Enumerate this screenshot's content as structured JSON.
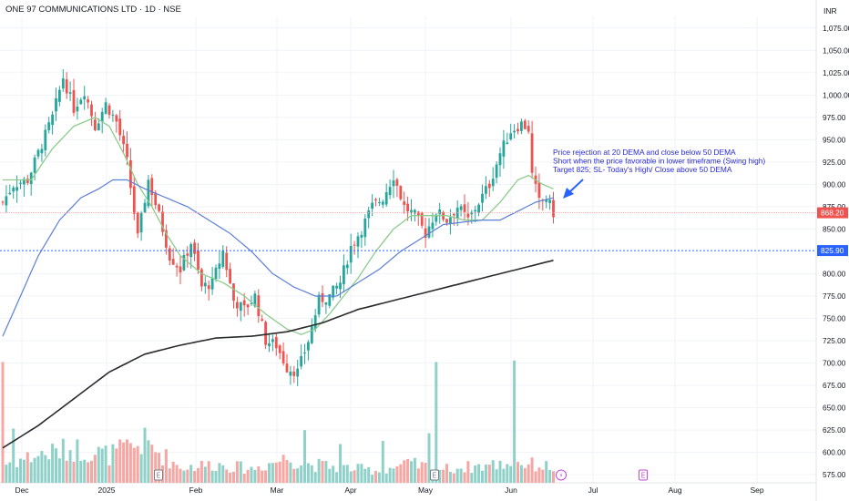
{
  "header": {
    "title": "ONE 97 COMMUNICATIONS LTD · 1D · NSE",
    "currency": "INR"
  },
  "colors": {
    "up": "#26a69a",
    "down": "#ef5350",
    "volume_up": "#8fd1c8",
    "volume_down": "#f6a7a4",
    "ema20": "#8ccb8c",
    "ema50": "#5b7fd9",
    "ema200": "#2b2b2b",
    "annotation": "#2929d6",
    "level_line": "#2962ff",
    "last_price_bg": "#ef5350"
  },
  "chart_data": {
    "type": "candlestick",
    "x_ticks": [
      "Dec",
      "2025",
      "Feb",
      "Mar",
      "Apr",
      "May",
      "Jun",
      "Jul",
      "Aug",
      "Sep"
    ],
    "y_ticks": [
      "1,075.00",
      "1,050.00",
      "1,025.00",
      "1,000.00",
      "975.00",
      "950.00",
      "925.00",
      "900.00",
      "875.00",
      "850.00",
      "800.00",
      "775.00",
      "750.00",
      "725.00",
      "700.00",
      "675.00",
      "650.00",
      "625.00",
      "600.00",
      "575.00"
    ],
    "ylim": [
      566,
      1088
    ],
    "price_markers": [
      {
        "label": "868.20",
        "value": 868.2,
        "style": "last-price"
      },
      {
        "label": "825.90",
        "value": 825.9,
        "style": "level"
      }
    ],
    "annotation": {
      "lines": [
        "Price rejection at 20 DEMA and close below 50 DEMA",
        "Short when the price favorable in lower timeframe (Swing high)",
        "Target 825; SL- Today's High/  Close above 50 DEMA"
      ]
    },
    "event_markers": [
      {
        "label": "E",
        "x_frac": 0.2
      },
      {
        "label": "E",
        "x_frac": 0.53
      },
      {
        "label": "⚡",
        "x_frac": 0.69
      },
      {
        "label": "E",
        "x_frac": 0.79
      }
    ],
    "series": [
      {
        "name": "price",
        "anchors": [
          [
            0,
            880
          ],
          [
            3,
            900
          ],
          [
            7,
            905
          ],
          [
            10,
            935
          ],
          [
            14,
            975
          ],
          [
            17,
            1020
          ],
          [
            20,
            985
          ],
          [
            23,
            1005
          ],
          [
            26,
            965
          ],
          [
            29,
            990
          ],
          [
            32,
            970
          ],
          [
            35,
            925
          ],
          [
            38,
            840
          ],
          [
            41,
            905
          ],
          [
            44,
            865
          ],
          [
            47,
            820
          ],
          [
            50,
            805
          ],
          [
            53,
            835
          ],
          [
            56,
            785
          ],
          [
            59,
            790
          ],
          [
            62,
            825
          ],
          [
            65,
            770
          ],
          [
            68,
            760
          ],
          [
            71,
            775
          ],
          [
            74,
            725
          ],
          [
            77,
            720
          ],
          [
            80,
            695
          ],
          [
            83,
            690
          ],
          [
            86,
            725
          ],
          [
            89,
            770
          ],
          [
            92,
            775
          ],
          [
            95,
            790
          ],
          [
            98,
            830
          ],
          [
            101,
            850
          ],
          [
            104,
            875
          ],
          [
            107,
            885
          ],
          [
            110,
            910
          ],
          [
            113,
            875
          ],
          [
            116,
            865
          ],
          [
            119,
            845
          ],
          [
            122,
            870
          ],
          [
            125,
            860
          ],
          [
            128,
            875
          ],
          [
            131,
            860
          ],
          [
            134,
            880
          ],
          [
            137,
            900
          ],
          [
            140,
            935
          ],
          [
            143,
            960
          ],
          [
            146,
            968
          ],
          [
            148,
            962
          ],
          [
            149,
            910
          ],
          [
            151,
            880
          ],
          [
            153,
            885
          ],
          [
            155,
            868
          ]
        ],
        "volume_anchors": [
          [
            0,
            0.12
          ],
          [
            10,
            0.18
          ],
          [
            20,
            0.22
          ],
          [
            30,
            0.18
          ],
          [
            40,
            0.26
          ],
          [
            50,
            0.1
          ],
          [
            60,
            0.12
          ],
          [
            70,
            0.09
          ],
          [
            80,
            0.16
          ],
          [
            86,
            0.12
          ],
          [
            95,
            0.1
          ],
          [
            105,
            0.08
          ],
          [
            115,
            0.12
          ],
          [
            120,
            0.1
          ],
          [
            125,
            0.09
          ],
          [
            135,
            0.11
          ],
          [
            145,
            0.13
          ],
          [
            155,
            0.1
          ]
        ],
        "volume_spikes": [
          [
            0,
            0.78
          ],
          [
            3,
            0.35
          ],
          [
            35,
            0.28
          ],
          [
            85,
            0.34
          ],
          [
            120,
            0.32
          ],
          [
            122,
            0.78
          ],
          [
            144,
            0.79
          ],
          [
            95,
            0.25
          ],
          [
            107,
            0.27
          ]
        ]
      },
      {
        "name": "ema20",
        "values": [
          [
            0,
            905
          ],
          [
            8,
            905
          ],
          [
            14,
            940
          ],
          [
            20,
            965
          ],
          [
            26,
            975
          ],
          [
            30,
            965
          ],
          [
            34,
            935
          ],
          [
            38,
            900
          ],
          [
            42,
            875
          ],
          [
            46,
            845
          ],
          [
            50,
            820
          ],
          [
            56,
            800
          ],
          [
            62,
            790
          ],
          [
            68,
            775
          ],
          [
            74,
            755
          ],
          [
            80,
            738
          ],
          [
            84,
            732
          ],
          [
            88,
            738
          ],
          [
            92,
            755
          ],
          [
            96,
            775
          ],
          [
            100,
            795
          ],
          [
            105,
            825
          ],
          [
            110,
            850
          ],
          [
            115,
            865
          ],
          [
            120,
            865
          ],
          [
            125,
            865
          ],
          [
            130,
            860
          ],
          [
            135,
            860
          ],
          [
            140,
            880
          ],
          [
            145,
            905
          ],
          [
            148,
            910
          ],
          [
            152,
            900
          ],
          [
            155,
            895
          ]
        ]
      },
      {
        "name": "ema50",
        "values": [
          [
            0,
            730
          ],
          [
            5,
            775
          ],
          [
            10,
            820
          ],
          [
            16,
            860
          ],
          [
            22,
            885
          ],
          [
            27,
            895
          ],
          [
            31,
            905
          ],
          [
            35,
            905
          ],
          [
            40,
            895
          ],
          [
            46,
            885
          ],
          [
            52,
            875
          ],
          [
            58,
            860
          ],
          [
            64,
            845
          ],
          [
            70,
            825
          ],
          [
            76,
            800
          ],
          [
            82,
            785
          ],
          [
            88,
            775
          ],
          [
            94,
            775
          ],
          [
            100,
            790
          ],
          [
            106,
            805
          ],
          [
            112,
            825
          ],
          [
            118,
            840
          ],
          [
            124,
            855
          ],
          [
            130,
            858
          ],
          [
            135,
            860
          ],
          [
            140,
            860
          ],
          [
            145,
            870
          ],
          [
            150,
            880
          ],
          [
            155,
            885
          ]
        ]
      },
      {
        "name": "ema200",
        "values": [
          [
            0,
            605
          ],
          [
            10,
            630
          ],
          [
            20,
            660
          ],
          [
            30,
            690
          ],
          [
            40,
            710
          ],
          [
            50,
            720
          ],
          [
            60,
            728
          ],
          [
            70,
            730
          ],
          [
            80,
            735
          ],
          [
            90,
            745
          ],
          [
            100,
            760
          ],
          [
            110,
            770
          ],
          [
            120,
            780
          ],
          [
            130,
            790
          ],
          [
            140,
            800
          ],
          [
            150,
            810
          ],
          [
            155,
            815
          ]
        ]
      }
    ]
  }
}
